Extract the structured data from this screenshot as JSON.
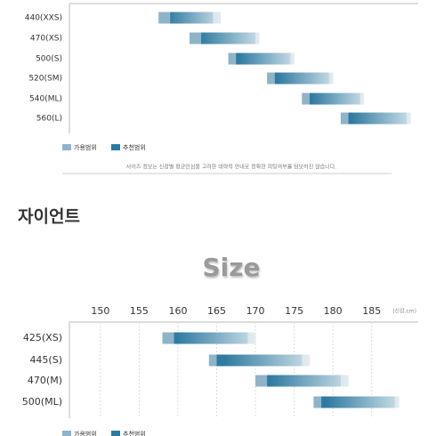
{
  "chart_data": [
    {
      "type": "range-bar",
      "xlim": [
        146,
        191
      ],
      "rows": [
        {
          "label": "440(XXS)",
          "range": [
            157.5,
            165.5
          ],
          "recommended": [
            159,
            164.5
          ]
        },
        {
          "label": "470(XS)",
          "range": [
            161.5,
            170.5
          ],
          "recommended": [
            163,
            170
          ]
        },
        {
          "label": "500(S)",
          "range": [
            166.5,
            175
          ],
          "recommended": [
            167.5,
            174.5
          ]
        },
        {
          "label": "520(SM)",
          "range": [
            171.5,
            180
          ],
          "recommended": [
            172.5,
            179.5
          ]
        },
        {
          "label": "540(ML)",
          "range": [
            176,
            184
          ],
          "recommended": [
            177,
            183.5
          ]
        },
        {
          "label": "560(L)",
          "range": [
            181,
            190
          ],
          "recommended": [
            182,
            189.5
          ]
        }
      ],
      "legend": [
        "가용범위",
        "추천범위"
      ],
      "colors": {
        "range": "#8fb3c9",
        "recommended": "#2f7aa0"
      },
      "note": "사이즈 정보는 신장별 평균인심을 고려한 대략적 안내로 정확한 피팅여부를 담보하진 않습니다."
    },
    {
      "type": "range-bar",
      "heading": "자이언트",
      "title": "Size",
      "xlabel": "(신장,cm)",
      "xlim": [
        146,
        191
      ],
      "xticks": [
        150,
        155,
        160,
        165,
        170,
        175,
        180,
        185
      ],
      "rows": [
        {
          "label": "425(XS)",
          "range": [
            158,
            170
          ],
          "recommended": [
            159.5,
            169
          ]
        },
        {
          "label": "445(S)",
          "range": [
            164,
            177
          ],
          "recommended": [
            165,
            176
          ]
        },
        {
          "label": "470(M)",
          "range": [
            170,
            182
          ],
          "recommended": [
            171.5,
            181
          ]
        },
        {
          "label": "500(ML)",
          "range": [
            177.5,
            188.5
          ],
          "recommended": [
            178.5,
            188
          ]
        }
      ],
      "legend": [
        "가용범위",
        "추천범위"
      ],
      "colors": {
        "range": "#8fb3c9",
        "recommended": "#2f7aa0"
      }
    }
  ]
}
